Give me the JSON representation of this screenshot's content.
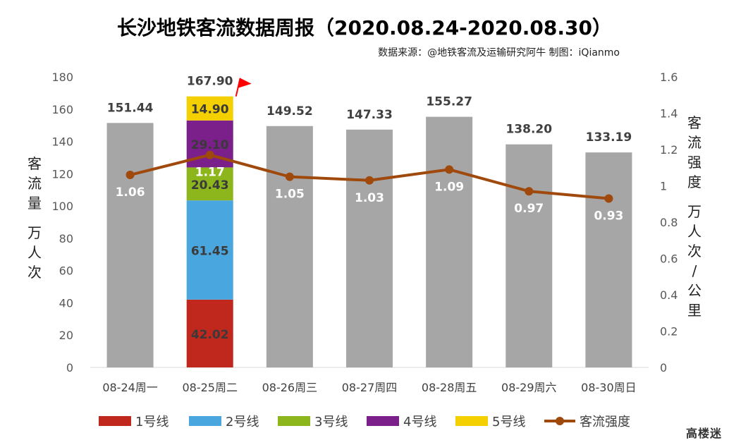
{
  "title": "长沙地铁客流数据周报（2020.08.24-2020.08.30）",
  "source": "数据来源：@地铁客流及运输研究阿牛 制图：iQianmo",
  "left_axis_label": "客流量 万人次",
  "right_axis_label": "客流强度 万人次/公里",
  "logo_text": "高楼迷",
  "chart_data": {
    "type": "bar",
    "categories": [
      "08-24周一",
      "08-25周二",
      "08-26周三",
      "08-27周四",
      "08-28周五",
      "08-29周六",
      "08-30周日"
    ],
    "totals": [
      151.44,
      167.9,
      149.52,
      147.33,
      155.27,
      138.2,
      133.19
    ],
    "total_labels": [
      "151.44",
      "167.90",
      "149.52",
      "147.33",
      "155.27",
      "138.20",
      "133.19"
    ],
    "total_bar_color": "#a6a6a6",
    "stacked_category_index": 1,
    "series": [
      {
        "name": "1号线",
        "color": "#c0281e",
        "values": [
          null,
          42.02,
          null,
          null,
          null,
          null,
          null
        ],
        "labels": [
          null,
          "42.02",
          null,
          null,
          null,
          null,
          null
        ]
      },
      {
        "name": "2号线",
        "color": "#4aa6de",
        "values": [
          null,
          61.45,
          null,
          null,
          null,
          null,
          null
        ],
        "labels": [
          null,
          "61.45",
          null,
          null,
          null,
          null,
          null
        ]
      },
      {
        "name": "3号线",
        "color": "#8db61c",
        "values": [
          null,
          20.43,
          null,
          null,
          null,
          null,
          null
        ],
        "labels": [
          null,
          "20.43",
          null,
          null,
          null,
          null,
          null
        ]
      },
      {
        "name": "4号线",
        "color": "#7b1f8a",
        "values": [
          null,
          29.1,
          null,
          null,
          null,
          null,
          null
        ],
        "labels": [
          null,
          "29.10",
          null,
          null,
          null,
          null,
          null
        ]
      },
      {
        "name": "5号线",
        "color": "#f5d000",
        "values": [
          null,
          14.9,
          null,
          null,
          null,
          null,
          null
        ],
        "labels": [
          null,
          "14.90",
          null,
          null,
          null,
          null,
          null
        ]
      }
    ],
    "line_series": {
      "name": "客流强度",
      "color": "#a0490c",
      "values": [
        1.06,
        1.17,
        1.05,
        1.03,
        1.09,
        0.97,
        0.93
      ],
      "labels": [
        "1.06",
        "1.17",
        "1.05",
        "1.03",
        "1.09",
        "0.97",
        "0.93"
      ]
    },
    "ylim_left": [
      0,
      180
    ],
    "yticks_left": [
      "0",
      "20",
      "40",
      "60",
      "80",
      "100",
      "120",
      "140",
      "160",
      "180"
    ],
    "ylim_right": [
      0,
      1.6
    ],
    "yticks_right": [
      "0",
      "0.2",
      "0.4",
      "0.6",
      "0.8",
      "1",
      "1.2",
      "1.4",
      "1.6"
    ],
    "grid": false,
    "legend_position": "bottom",
    "flag_color": "#ff0000"
  }
}
